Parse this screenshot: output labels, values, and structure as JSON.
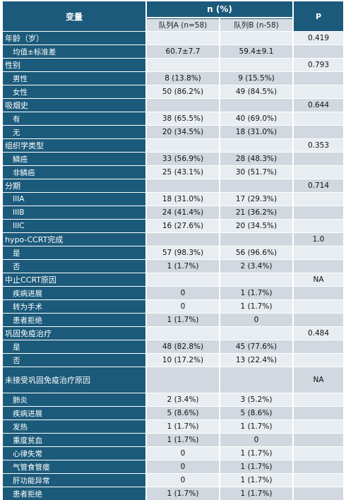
{
  "header": {
    "variable": "变量",
    "n_pct": "n (%)",
    "group_a": "队列A (n=58)",
    "group_b": "队列B (n-58)",
    "p": "P"
  },
  "rows": [
    {
      "kind": "cat",
      "label": "年龄（岁）",
      "a": "",
      "b": "",
      "p": "0.419"
    },
    {
      "kind": "sub",
      "label": "均值±标准差",
      "a": "60.7±7.7",
      "b": "59.4±9.1",
      "p": ""
    },
    {
      "kind": "cat",
      "label": "性别",
      "a": "",
      "b": "",
      "p": "0.793"
    },
    {
      "kind": "sub",
      "label": "男性",
      "a": "8 (13.8%)",
      "b": "9 (15.5%)",
      "p": ""
    },
    {
      "kind": "sub",
      "label": "女性",
      "a": "50 (86.2%)",
      "b": "49 (84.5%)",
      "p": ""
    },
    {
      "kind": "cat",
      "label": "吸烟史",
      "a": "",
      "b": "",
      "p": "0.644"
    },
    {
      "kind": "sub",
      "label": "有",
      "a": "38 (65.5%)",
      "b": "40 (69.0%)",
      "p": ""
    },
    {
      "kind": "sub",
      "label": "无",
      "a": "20 (34.5%)",
      "b": "18 (31.0%)",
      "p": ""
    },
    {
      "kind": "cat",
      "label": "组织学类型",
      "a": "",
      "b": "",
      "p": "0.353"
    },
    {
      "kind": "sub",
      "label": "鳞癌",
      "a": "33 (56.9%)",
      "b": "28 (48.3%)",
      "p": ""
    },
    {
      "kind": "sub",
      "label": "非鳞癌",
      "a": "25 (43.1%)",
      "b": "30 (51.7%)",
      "p": ""
    },
    {
      "kind": "cat",
      "label": "分期",
      "a": "",
      "b": "",
      "p": "0.714"
    },
    {
      "kind": "sub",
      "label": "IIIA",
      "a": "18 (31.0%)",
      "b": "17 (29.3%)",
      "p": ""
    },
    {
      "kind": "sub",
      "label": "IIIB",
      "a": "24 (41.4%)",
      "b": "21 (36.2%)",
      "p": ""
    },
    {
      "kind": "sub",
      "label": "IIIC",
      "a": "16 (27.6%)",
      "b": "20 (34.5%)",
      "p": ""
    },
    {
      "kind": "cat",
      "label": "hypo-CCRT完成",
      "a": "",
      "b": "",
      "p": "1.0"
    },
    {
      "kind": "sub",
      "label": "是",
      "a": "57 (98.3%)",
      "b": "56 (96.6%)",
      "p": ""
    },
    {
      "kind": "sub",
      "label": "否",
      "a": "1 (1.7%)",
      "b": "2 (3.4%)",
      "p": ""
    },
    {
      "kind": "cat",
      "label": "中止CCRT原因",
      "a": "",
      "b": "",
      "p": "NA"
    },
    {
      "kind": "sub",
      "label": "疾病进展",
      "a": "0",
      "b": "1 (1.7%)",
      "p": ""
    },
    {
      "kind": "sub",
      "label": "转为手术",
      "a": "0",
      "b": "1 (1.7%)",
      "p": ""
    },
    {
      "kind": "sub",
      "label": "患者拒绝",
      "a": "1 (1.7%)",
      "b": "0",
      "p": ""
    },
    {
      "kind": "cat",
      "label": "巩固免疫治疗",
      "a": "",
      "b": "",
      "p": "0.484"
    },
    {
      "kind": "sub",
      "label": "是",
      "a": "48 (82.8%)",
      "b": "45 (77.6%)",
      "p": ""
    },
    {
      "kind": "sub",
      "label": "否",
      "a": "10 (17.2%)",
      "b": "13 (22.4%)",
      "p": ""
    },
    {
      "kind": "cat",
      "label": "未接受巩固免疫治疗原因",
      "a": "",
      "b": "",
      "p": "NA",
      "tall": true
    },
    {
      "kind": "sub",
      "label": "肺炎",
      "a": "2 (3.4%)",
      "b": "3 (5.2%)",
      "p": ""
    },
    {
      "kind": "sub",
      "label": "疾病进展",
      "a": "5 (8.6%)",
      "b": "5 (8.6%)",
      "p": ""
    },
    {
      "kind": "sub",
      "label": "发热",
      "a": "1 (1.7%)",
      "b": "1 (1.7%)",
      "p": ""
    },
    {
      "kind": "sub",
      "label": "重度贫血",
      "a": "1 (1.7%)",
      "b": "0",
      "p": ""
    },
    {
      "kind": "sub",
      "label": "心律失常",
      "a": "0",
      "b": "1 (1.7%)",
      "p": ""
    },
    {
      "kind": "sub",
      "label": "气管食管瘘",
      "a": "0",
      "b": "1 (1.7%)",
      "p": ""
    },
    {
      "kind": "sub",
      "label": "肝功能异常",
      "a": "0",
      "b": "1 (1.7%)",
      "p": ""
    },
    {
      "kind": "sub",
      "label": "患者拒绝",
      "a": "1 (1.7%)",
      "b": "1 (1.7%)",
      "p": ""
    }
  ]
}
